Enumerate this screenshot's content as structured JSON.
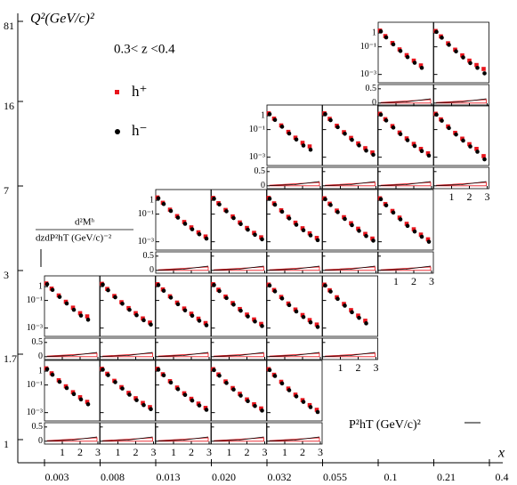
{
  "chart_data": {
    "type": "multi_panel",
    "title": "Q²(GeV/c)²",
    "subtitle": "0.3< z <0.4",
    "y_label_top": "d²Mʰ",
    "y_label_bottom": "dzdP²hT (GeV/c)⁻²",
    "panel_x_label": "P²hT (GeV/c)²",
    "x_label": "x",
    "x_bin_edges": [
      "0.003",
      "0.008",
      "0.013",
      "0.020",
      "0.032",
      "0.055",
      "0.1",
      "0.21",
      "0.4"
    ],
    "q2_bin_edges": [
      "1",
      "1.7",
      "3",
      "7",
      "16",
      "81"
    ],
    "series": [
      {
        "name": "h⁺",
        "color": "#e8141c"
      },
      {
        "name": "h⁻",
        "color": "#000000"
      }
    ],
    "pt2": [
      0.1,
      0.4,
      0.8,
      1.2,
      1.6,
      2.0,
      2.4,
      2.8
    ],
    "panel_xlim": [
      0,
      3.1
    ],
    "panel_xticks": [
      1,
      2,
      3
    ],
    "panel_ylim": [
      0.00025,
      6
    ],
    "panel_yticks": [
      {
        "value": 1,
        "label": "1"
      },
      {
        "value": 0.1,
        "label": "10⁻¹"
      },
      {
        "value": 0.001,
        "label": "10⁻³"
      }
    ],
    "log_y": true,
    "ratio_ylim": [
      -0.1,
      0.65
    ],
    "ratio_yticks": [
      0,
      0.5
    ],
    "rows": [
      {
        "panels": [
          {
            "values": [
              [
                1.6,
                0.7,
                0.22,
                0.08,
                0.03,
                0.013,
                0.006,
                null
              ],
              [
                1.4,
                0.55,
                0.17,
                0.06,
                0.022,
                0.009,
                0.004,
                null
              ]
            ]
          },
          {
            "values": [
              [
                1.5,
                0.65,
                0.2,
                0.07,
                0.027,
                0.011,
                0.005,
                0.0025
              ],
              [
                1.3,
                0.52,
                0.16,
                0.055,
                0.02,
                0.008,
                0.0035,
                0.0018
              ]
            ]
          },
          {
            "values": [
              [
                1.5,
                0.6,
                0.19,
                0.065,
                0.025,
                0.01,
                0.0045,
                0.0022
              ],
              [
                1.3,
                0.5,
                0.15,
                0.05,
                0.019,
                0.0075,
                0.0033,
                0.0016
              ]
            ]
          },
          {
            "values": [
              [
                1.4,
                0.58,
                0.18,
                0.06,
                0.023,
                0.009,
                0.004,
                0.002
              ],
              [
                1.2,
                0.47,
                0.14,
                0.047,
                0.017,
                0.0068,
                0.003,
                0.0014
              ]
            ]
          },
          {
            "values": [
              [
                1.4,
                0.55,
                0.17,
                0.055,
                0.02,
                0.008,
                0.0035,
                0.0016
              ],
              [
                1.2,
                0.45,
                0.13,
                0.042,
                0.015,
                0.006,
                0.0025,
                0.0011
              ]
            ]
          }
        ]
      },
      {
        "panels": [
          {
            "values": [
              [
                1.7,
                0.72,
                0.23,
                0.08,
                0.03,
                0.012,
                0.007,
                null
              ],
              [
                1.5,
                0.58,
                0.18,
                0.06,
                0.021,
                0.008,
                0.004,
                null
              ]
            ]
          },
          {
            "values": [
              [
                1.6,
                0.68,
                0.21,
                0.075,
                0.028,
                0.012,
                0.005,
                0.0025
              ],
              [
                1.4,
                0.55,
                0.17,
                0.058,
                0.021,
                0.0085,
                0.0037,
                0.0018
              ]
            ]
          },
          {
            "values": [
              [
                1.5,
                0.63,
                0.2,
                0.07,
                0.026,
                0.011,
                0.0048,
                0.0023
              ],
              [
                1.3,
                0.5,
                0.16,
                0.053,
                0.019,
                0.0078,
                0.0034,
                0.0016
              ]
            ]
          },
          {
            "values": [
              [
                1.5,
                0.6,
                0.19,
                0.065,
                0.024,
                0.0095,
                0.0042,
                0.002
              ],
              [
                1.3,
                0.48,
                0.15,
                0.05,
                0.018,
                0.007,
                0.003,
                0.0014
              ]
            ]
          },
          {
            "values": [
              [
                1.4,
                0.57,
                0.18,
                0.06,
                0.022,
                0.0088,
                0.0038,
                0.0018
              ],
              [
                1.2,
                0.46,
                0.14,
                0.046,
                0.016,
                0.0063,
                0.0026,
                0.0012
              ]
            ]
          },
          {
            "values": [
              [
                1.4,
                0.55,
                0.17,
                0.056,
                0.02,
                0.008,
                0.0034,
                null
              ],
              [
                1.2,
                0.44,
                0.13,
                0.042,
                0.014,
                0.0055,
                0.0022,
                null
              ]
            ]
          }
        ]
      },
      {
        "panels": [
          {
            "values": [
              [
                1.6,
                0.66,
                0.21,
                0.072,
                0.027,
                0.011,
                0.0048,
                0.0024
              ],
              [
                1.4,
                0.54,
                0.17,
                0.056,
                0.02,
                0.008,
                0.0035,
                0.0017
              ]
            ]
          },
          {
            "values": [
              [
                1.5,
                0.62,
                0.2,
                0.068,
                0.025,
                0.01,
                0.0044,
                0.0021
              ],
              [
                1.3,
                0.5,
                0.16,
                0.052,
                0.019,
                0.0075,
                0.0032,
                0.0015
              ]
            ]
          },
          {
            "values": [
              [
                1.5,
                0.6,
                0.19,
                0.064,
                0.024,
                0.0095,
                0.0041,
                0.0019
              ],
              [
                1.3,
                0.48,
                0.15,
                0.049,
                0.017,
                0.0068,
                0.0029,
                0.0013
              ]
            ]
          },
          {
            "values": [
              [
                1.4,
                0.57,
                0.18,
                0.06,
                0.022,
                0.0088,
                0.0037,
                0.0017
              ],
              [
                1.2,
                0.46,
                0.14,
                0.045,
                0.016,
                0.0062,
                0.0026,
                0.0012
              ]
            ]
          },
          {
            "values": [
              [
                1.4,
                0.54,
                0.17,
                0.056,
                0.02,
                0.008,
                0.0033,
                0.0015
              ],
              [
                1.2,
                0.43,
                0.13,
                0.042,
                0.014,
                0.0055,
                0.0023,
                0.001
              ]
            ]
          }
        ]
      },
      {
        "panels": [
          {
            "values": [
              [
                1.5,
                0.62,
                0.2,
                0.068,
                0.026,
                0.011,
                0.006,
                null
              ],
              [
                1.3,
                0.5,
                0.16,
                0.052,
                0.019,
                0.007,
                0.0035,
                null
              ]
            ]
          },
          {
            "values": [
              [
                1.5,
                0.6,
                0.19,
                0.065,
                0.025,
                0.01,
                0.0045,
                0.0022
              ],
              [
                1.3,
                0.48,
                0.15,
                0.05,
                0.018,
                0.0072,
                0.003,
                0.0015
              ]
            ]
          },
          {
            "values": [
              [
                1.4,
                0.57,
                0.18,
                0.061,
                0.023,
                0.0092,
                0.004,
                0.0019
              ],
              [
                1.2,
                0.46,
                0.14,
                0.047,
                0.017,
                0.0065,
                0.0028,
                0.0013
              ]
            ]
          },
          {
            "values": [
              [
                1.4,
                0.55,
                0.17,
                0.058,
                0.022,
                0.0088,
                0.004,
                0.0012
              ],
              [
                1.2,
                0.44,
                0.13,
                0.044,
                0.016,
                0.006,
                0.0025,
                0.0007
              ]
            ]
          }
        ]
      },
      {
        "panels": [
          {
            "values": [
              [
                1.5,
                0.6,
                0.19,
                0.065,
                0.025,
                0.01,
                0.0045,
                null
              ],
              [
                1.3,
                0.48,
                0.15,
                0.05,
                0.018,
                0.007,
                0.003,
                null
              ]
            ]
          },
          {
            "values": [
              [
                1.4,
                0.57,
                0.18,
                0.062,
                0.024,
                0.01,
                0.0048,
                0.0025
              ],
              [
                1.2,
                0.46,
                0.14,
                0.047,
                0.017,
                0.0066,
                0.003,
                0.0012
              ]
            ]
          }
        ]
      }
    ]
  }
}
